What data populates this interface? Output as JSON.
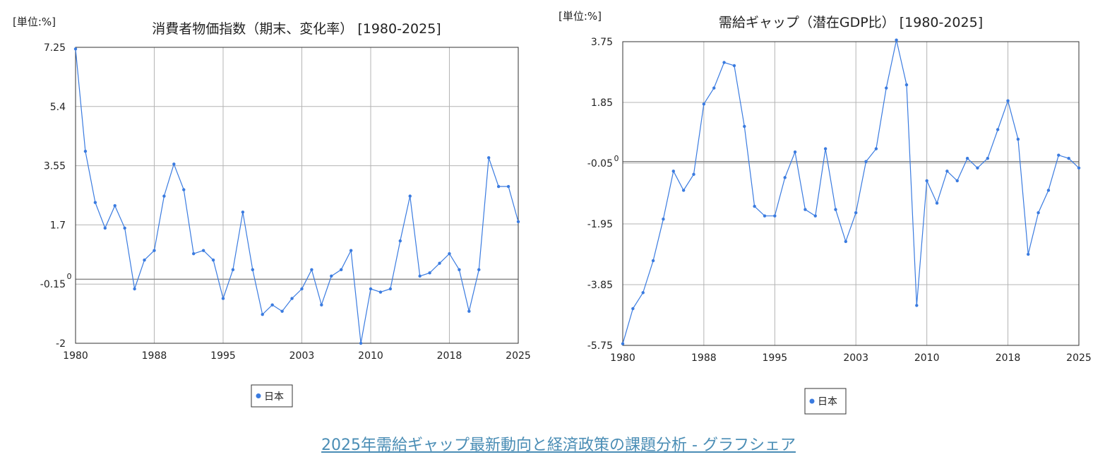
{
  "chart_data": [
    {
      "type": "line",
      "unit_label": "[単位:%]",
      "title": "消費者物価指数（期末、変化率） [1980-2025]",
      "ylim": [
        -2,
        7.25
      ],
      "yticks": [
        "7.25",
        "5.4",
        "3.55",
        "1.7",
        "-0.15",
        "-2"
      ],
      "xlim": [
        1980,
        2025
      ],
      "xticks": [
        "1980",
        "1988",
        "1995",
        "2003",
        "2010",
        "2018",
        "2025"
      ],
      "zero_label": "0",
      "grid": true,
      "legend": "bottom",
      "series": [
        {
          "name": "日本",
          "color": "#3a7be0",
          "x": [
            1980,
            1981,
            1982,
            1983,
            1984,
            1985,
            1986,
            1987,
            1988,
            1989,
            1990,
            1991,
            1992,
            1993,
            1994,
            1995,
            1996,
            1997,
            1998,
            1999,
            2000,
            2001,
            2002,
            2003,
            2004,
            2005,
            2006,
            2007,
            2008,
            2009,
            2010,
            2011,
            2012,
            2013,
            2014,
            2015,
            2016,
            2017,
            2018,
            2019,
            2020,
            2021,
            2022,
            2023,
            2024,
            2025
          ],
          "values": [
            7.2,
            4.0,
            2.4,
            1.6,
            2.3,
            1.6,
            -0.3,
            0.6,
            0.9,
            2.6,
            3.6,
            2.8,
            0.8,
            0.9,
            0.6,
            -0.6,
            0.3,
            2.1,
            0.3,
            -1.1,
            -0.8,
            -1.0,
            -0.6,
            -0.3,
            0.3,
            -0.8,
            0.1,
            0.3,
            0.9,
            -2.0,
            -0.3,
            -0.4,
            -0.3,
            1.2,
            2.6,
            0.1,
            0.2,
            0.5,
            0.8,
            0.3,
            -1.0,
            0.3,
            3.8,
            2.9,
            2.9,
            1.8
          ]
        }
      ]
    },
    {
      "type": "line",
      "unit_label": "[単位:%]",
      "title": "需給ギャップ（潜在GDP比） [1980-2025]",
      "ylim": [
        -5.75,
        3.75
      ],
      "yticks": [
        "3.75",
        "1.85",
        "-0.05",
        "-1.95",
        "-3.85",
        "-5.75"
      ],
      "xlim": [
        1980,
        2025
      ],
      "xticks": [
        "1980",
        "1988",
        "1995",
        "2003",
        "2010",
        "2018",
        "2025"
      ],
      "zero_label": "0",
      "grid": true,
      "legend": "bottom",
      "series": [
        {
          "name": "日本",
          "color": "#3a7be0",
          "x": [
            1980,
            1981,
            1982,
            1983,
            1984,
            1985,
            1986,
            1987,
            1988,
            1989,
            1990,
            1991,
            1992,
            1993,
            1994,
            1995,
            1996,
            1997,
            1998,
            1999,
            2000,
            2001,
            2002,
            2003,
            2004,
            2005,
            2006,
            2007,
            2008,
            2009,
            2010,
            2011,
            2012,
            2013,
            2014,
            2015,
            2016,
            2017,
            2018,
            2019,
            2020,
            2021,
            2022,
            2023,
            2024,
            2025
          ],
          "values": [
            -5.7,
            -4.6,
            -4.1,
            -3.1,
            -1.8,
            -0.3,
            -0.9,
            -0.4,
            1.8,
            2.3,
            3.1,
            3.0,
            1.1,
            -1.4,
            -1.7,
            -1.7,
            -0.5,
            0.3,
            -1.5,
            -1.7,
            0.4,
            -1.5,
            -2.5,
            -1.6,
            0.0,
            0.4,
            2.3,
            3.8,
            2.4,
            -4.5,
            -0.6,
            -1.3,
            -0.3,
            -0.6,
            0.1,
            -0.2,
            0.1,
            1.0,
            1.9,
            0.7,
            -2.9,
            -1.6,
            -0.9,
            0.2,
            0.1,
            -0.2
          ]
        }
      ]
    }
  ],
  "footer": {
    "link_text": "2025年需給ギャップ最新動向と経済政策の課題分析 - グラフシェア"
  }
}
